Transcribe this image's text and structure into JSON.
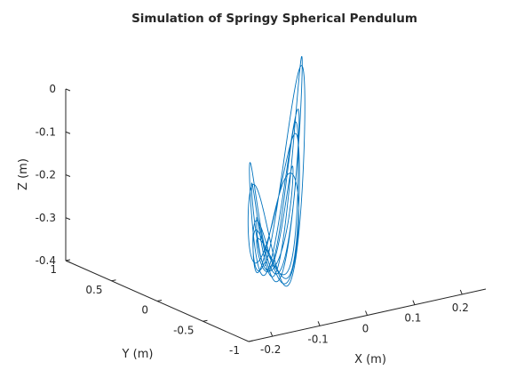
{
  "chart_data": {
    "type": "line",
    "title": "Simulation of Springy Spherical Pendulum",
    "xlabel": "X (m)",
    "ylabel": "Y (m)",
    "zlabel": "Z (m)",
    "projection": "3d",
    "grid": false,
    "xlim": [
      -0.25,
      0.25
    ],
    "ylim": [
      -1,
      1
    ],
    "zlim": [
      -0.4,
      0
    ],
    "xticks": [
      "-0.2",
      "-0.1",
      "0",
      "0.1",
      "0.2"
    ],
    "yticks": [
      "-1",
      "-0.5",
      "0",
      "0.5",
      "1"
    ],
    "zticks": [
      "-0.4",
      "-0.3",
      "-0.2",
      "-0.1",
      "0"
    ],
    "series_color": "#0072BD",
    "trajectory": {
      "x_amplitude": 0.2,
      "y_amplitude": 0.75,
      "z_rest": -0.39,
      "z_swing_amplitude": 0.38,
      "loops": 7
    }
  }
}
